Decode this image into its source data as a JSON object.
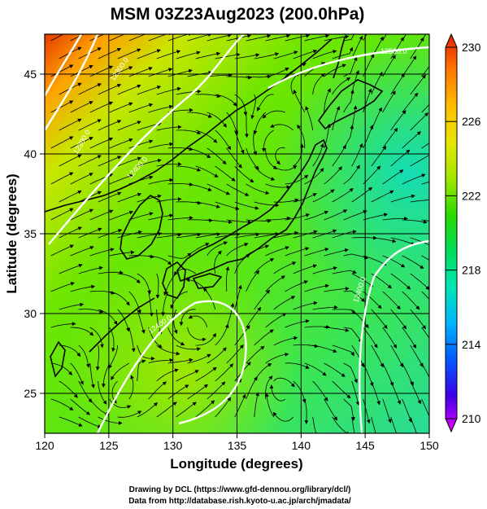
{
  "title": "MSM 03Z23Aug2023 (200.0hPa)",
  "x_axis": {
    "label": "Longitude (degrees)",
    "range": [
      120,
      150
    ],
    "ticks": [
      "120",
      "125",
      "130",
      "135",
      "140",
      "145",
      "150"
    ]
  },
  "y_axis": {
    "label": "Latitude  (degrees)",
    "range": [
      22.5,
      47.5
    ],
    "ticks": [
      "25",
      "30",
      "35",
      "40",
      "45"
    ]
  },
  "colorbar": {
    "range": [
      210,
      230
    ],
    "ticks": [
      "210",
      "214",
      "218",
      "222",
      "226",
      "230"
    ],
    "colors": [
      "#e600ff",
      "#3c00e6",
      "#005aff",
      "#00b4ff",
      "#00e6b4",
      "#00dc5a",
      "#28dc00",
      "#a0e600",
      "#e6e600",
      "#ffbe00",
      "#ff7800",
      "#e61e00"
    ]
  },
  "contours": {
    "color": "#ffffff",
    "labels": [
      "12500.0",
      "12400.0",
      "12300.0",
      "12400.0",
      "12400.0",
      "12300.0"
    ]
  },
  "credits": {
    "line1": "Drawing by DCL (https://www.gfd-dennou.org/library/dcl/)",
    "line2": "Data from http://database.rish.kyoto-u.ac.jp/arch/jmadata/"
  }
}
